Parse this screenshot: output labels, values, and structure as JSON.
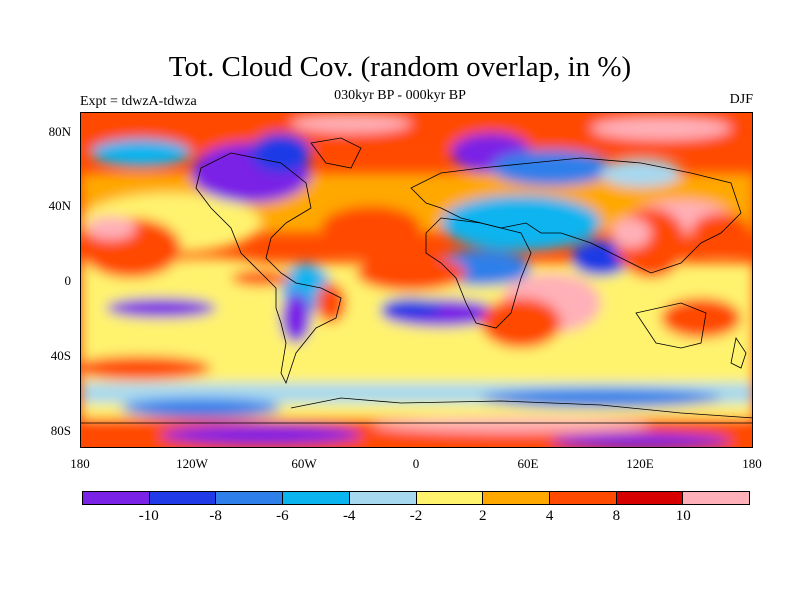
{
  "title": "Tot. Cloud Cov. (random overlap, in %)",
  "subtitle_center": "030kyr BP - 000kyr BP",
  "subtitle_left": "Expt = tdwzA-tdwza",
  "subtitle_right": "DJF",
  "y_axis_labels": [
    "80N",
    "40N",
    "0",
    "40S",
    "80S"
  ],
  "x_axis_labels": [
    "180",
    "120W",
    "60W",
    "0",
    "60E",
    "120E",
    "180"
  ],
  "colorbar": {
    "colors": [
      "#7a22e6",
      "#1f3ae6",
      "#2f7fea",
      "#0ab4ef",
      "#a6d8f0",
      "#fff36e",
      "#ffa800",
      "#ff4a00",
      "#d70000",
      "#ffb0b8"
    ],
    "labels": [
      "-10",
      "-8",
      "-6",
      "-4",
      "-2",
      "2",
      "4",
      "8",
      "10"
    ]
  }
}
